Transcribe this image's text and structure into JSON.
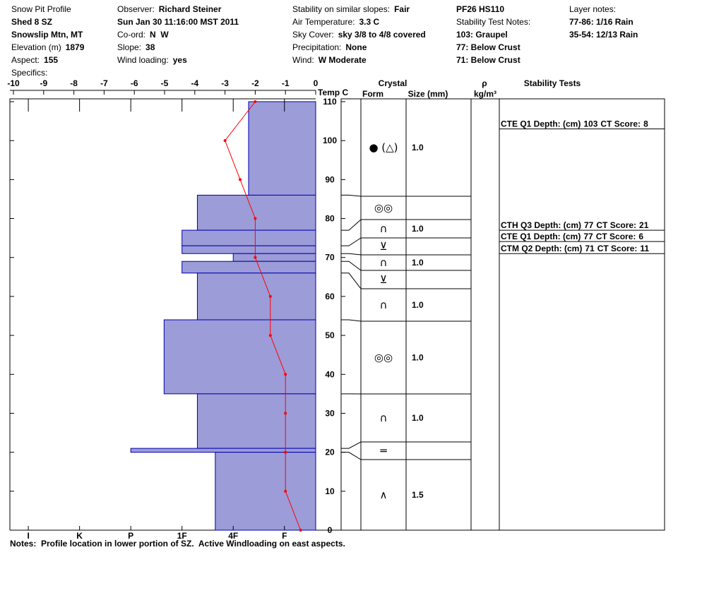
{
  "header": {
    "columns": [
      [
        {
          "label": "Snow Pit Profile"
        },
        {
          "value": "Shed 8 SZ"
        },
        {
          "value": "Snowslip Mtn, MT"
        },
        {
          "label": "Elevation (m)",
          "value": "1879"
        },
        {
          "label": "Aspect:",
          "value": "155"
        },
        {
          "label": "Specifics:"
        }
      ],
      [
        {
          "label": "Observer:",
          "value": "Richard Steiner"
        },
        {
          "value": "Sun Jan 30 11:16:00 MST 2011"
        },
        {
          "label": "Co-ord:",
          "value": "N  W"
        },
        {
          "label": "Slope:",
          "value": "38"
        },
        {
          "label": "Wind loading:",
          "value": "yes"
        }
      ],
      [
        {
          "label": "Stability on similar slopes:",
          "value": "Fair"
        },
        {
          "label": "Air Temperature:",
          "value": "3.3 C"
        },
        {
          "label": "Sky Cover:",
          "value": "sky 3/8 to 4/8 covered"
        },
        {
          "label": "Precipitation:",
          "value": "None"
        },
        {
          "label": "Wind:",
          "value": "W Moderate"
        }
      ],
      [
        {
          "value": "PF26 HS110"
        },
        {
          "label": "Stability Test Notes:"
        },
        {
          "value": "103: Graupel"
        },
        {
          "value": "77: Below Crust"
        },
        {
          "value": "71: Below Crust"
        }
      ],
      [
        {
          "label": "Layer notes:"
        },
        {
          "value": "77-86: 1/16 Rain"
        },
        {
          "value": "35-54: 12/13 Rain"
        }
      ]
    ]
  },
  "chart_data": {
    "type": "snowpit",
    "temp_axis_label": "Temp C",
    "xlim": [
      -10,
      0
    ],
    "xticks": [
      -10,
      -9,
      -8,
      -7,
      -6,
      -5,
      -4,
      -3,
      -2,
      -1,
      0
    ],
    "ylim": [
      0,
      110
    ],
    "yticks": [
      0,
      10,
      20,
      30,
      40,
      50,
      60,
      70,
      80,
      90,
      100,
      110
    ],
    "hardness_lim": [
      6.36,
      0.39
    ],
    "hardness_ticks": [
      {
        "value": 6,
        "label": "I"
      },
      {
        "value": 5,
        "label": "K"
      },
      {
        "value": 4,
        "label": "P"
      },
      {
        "value": 3,
        "label": "1F"
      },
      {
        "value": 2,
        "label": "4F"
      },
      {
        "value": 1,
        "label": "F"
      }
    ],
    "hardness_color": "#9c9cd8",
    "temperature": {
      "color": "#ff0000",
      "heights": [
        110,
        100,
        90,
        80,
        70,
        60,
        50,
        40,
        30,
        20,
        10,
        0
      ],
      "values": [
        -2,
        -3,
        -2.5,
        -2,
        -2,
        -1.5,
        -1.5,
        -1,
        -1,
        -1,
        -1,
        -0.5
      ]
    },
    "layers": [
      {
        "top": 110,
        "bottom": 86,
        "hardness": 1.7,
        "form": "● (△)",
        "size": "1.0"
      },
      {
        "top": 86,
        "bottom": 77,
        "hardness": 2.7,
        "form": "◎◎"
      },
      {
        "top": 77,
        "bottom": 73,
        "hardness": 3.0,
        "form": "∩",
        "size": "1.0"
      },
      {
        "top": 73,
        "bottom": 71,
        "hardness": 3.0,
        "form": "⊻"
      },
      {
        "top": 71,
        "bottom": 69,
        "hardness": 2.0,
        "form": "∩",
        "size": "1.0"
      },
      {
        "top": 69,
        "bottom": 66,
        "hardness": 3.0,
        "form": "⊻"
      },
      {
        "top": 66,
        "bottom": 54,
        "hardness": 2.7,
        "form": "∩",
        "size": "1.0"
      },
      {
        "top": 54,
        "bottom": 35,
        "hardness": 3.35,
        "form": "◎◎",
        "size": "1.0"
      },
      {
        "top": 35,
        "bottom": 21,
        "hardness": 2.7,
        "form": "∩",
        "size": "1.0"
      },
      {
        "top": 21,
        "bottom": 20,
        "hardness": 4.0,
        "form": "═"
      },
      {
        "top": 20,
        "bottom": 0,
        "hardness": 2.35,
        "form": "∧",
        "size": "1.5"
      }
    ]
  },
  "columns": {
    "crystal": "Crystal",
    "form": "Form",
    "size": "Size (mm)",
    "rho": "ρ",
    "density": "kg/m³",
    "stability": "Stability Tests"
  },
  "stability_tests": [
    {
      "label": "CTE Q1 Depth: (cm)",
      "depth": 103,
      "score_label": "CT Score:",
      "score": 8
    },
    {
      "label": "CTH Q3 Depth: (cm)",
      "depth": 77,
      "score_label": "CT Score:",
      "score": 21
    },
    {
      "label": "CTE Q1 Depth: (cm)",
      "depth": 77,
      "score_label": "CT Score:",
      "score": 6
    },
    {
      "label": "CTM Q2 Depth: (cm)",
      "depth": 71,
      "score_label": "CT Score:",
      "score": 11
    }
  ],
  "notes": "Notes:  Profile location in lower portion of SZ.  Active Windloading on east aspects."
}
